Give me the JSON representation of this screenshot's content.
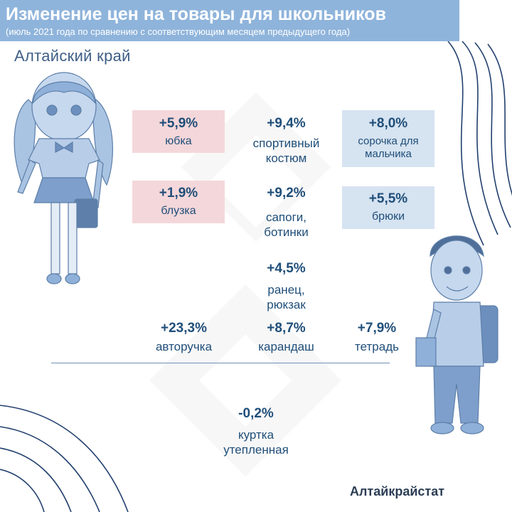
{
  "header": {
    "title": "Изменение цен на товары для школьников",
    "subtitle": "(июль 2021 года по сравнению с соответствующим месяцем предыдущего года)"
  },
  "region": "Алтайский край",
  "items": {
    "skirt": {
      "pct": "+5,9%",
      "label": "юбка"
    },
    "sport_suit": {
      "pct": "+9,4%",
      "label_line1": "спортивный",
      "label_line2": "костюм"
    },
    "shirt_boy": {
      "pct": "+8,0%",
      "label_line1": "сорочка для",
      "label_line2": "мальчика"
    },
    "blouse": {
      "pct": "+1,9%",
      "label": "блузка"
    },
    "boots": {
      "pct": "+9,2%",
      "label_line1": "сапоги,",
      "label_line2": "ботинки"
    },
    "trousers": {
      "pct": "+5,5%",
      "label": "брюки"
    },
    "backpack": {
      "pct": "+4,5%",
      "label_line1": "ранец,",
      "label_line2": "рюкзак"
    },
    "pen": {
      "pct": "+23,3%",
      "label": "авторучка"
    },
    "pencil": {
      "pct": "+8,7%",
      "label": "карандаш"
    },
    "notebook": {
      "pct": "+7,9%",
      "label": "тетрадь"
    },
    "jacket": {
      "pct": "-0,2%",
      "label_line1": "куртка",
      "label_line2": "утепленная"
    }
  },
  "footer": {
    "organization": "Алтайкрайстат"
  },
  "colors": {
    "header_bg": "#8fb4db",
    "text_primary": "#1f4e79",
    "box_pink": "#f4d7da",
    "box_blue": "#d6e3f1",
    "decor_lines": "#22406e"
  },
  "illustrations": [
    "girl-student-illustration",
    "boy-student-illustration"
  ]
}
